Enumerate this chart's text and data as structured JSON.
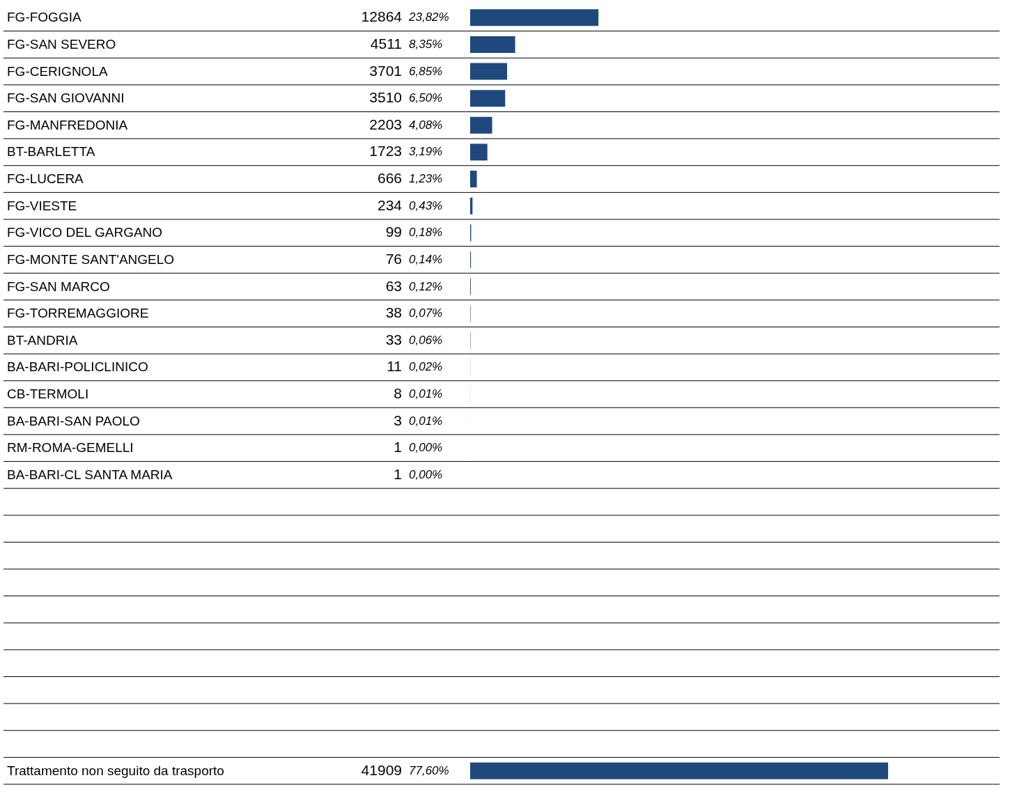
{
  "chart_data": {
    "type": "bar",
    "orientation": "horizontal",
    "data_labels": true,
    "grid": "y",
    "tick_labels": false,
    "categories": [
      "FG-FOGGIA",
      "FG-SAN SEVERO",
      "FG-CERIGNOLA",
      "FG-SAN GIOVANNI",
      "FG-MANFREDONIA",
      "BT-BARLETTA",
      "FG-LUCERA",
      "FG-VIESTE",
      "FG-VICO DEL GARGANO",
      "FG-MONTE SANT'ANGELO",
      "FG-SAN MARCO",
      "FG-TORREMAGGIORE",
      "BT-ANDRIA",
      "BA-BARI-POLICLINICO",
      "CB-TERMOLI",
      "BA-BARI-SAN PAOLO",
      "RM-ROMA-GEMELLI",
      "BA-BARI-CL SANTA MARIA",
      null,
      null,
      null,
      null,
      null,
      null,
      null,
      null,
      null,
      null,
      "Trattamento non seguito da trasporto"
    ],
    "values": [
      12864,
      4511,
      3701,
      3510,
      2203,
      1723,
      666,
      234,
      99,
      76,
      63,
      38,
      33,
      11,
      8,
      3,
      1,
      1,
      null,
      null,
      null,
      null,
      null,
      null,
      null,
      null,
      null,
      null,
      41909
    ],
    "color": "#1f497d",
    "annotations": [
      "23,82%",
      "8,35%",
      "6,85%",
      "6,50%",
      "4,08%",
      "3,19%",
      "1,23%",
      "0,43%",
      "0,18%",
      "0,14%",
      "0,12%",
      "0,07%",
      "0,06%",
      "0,02%",
      "0,01%",
      "0,01%",
      "0,00%",
      "0,00%",
      "77,60%"
    ]
  }
}
